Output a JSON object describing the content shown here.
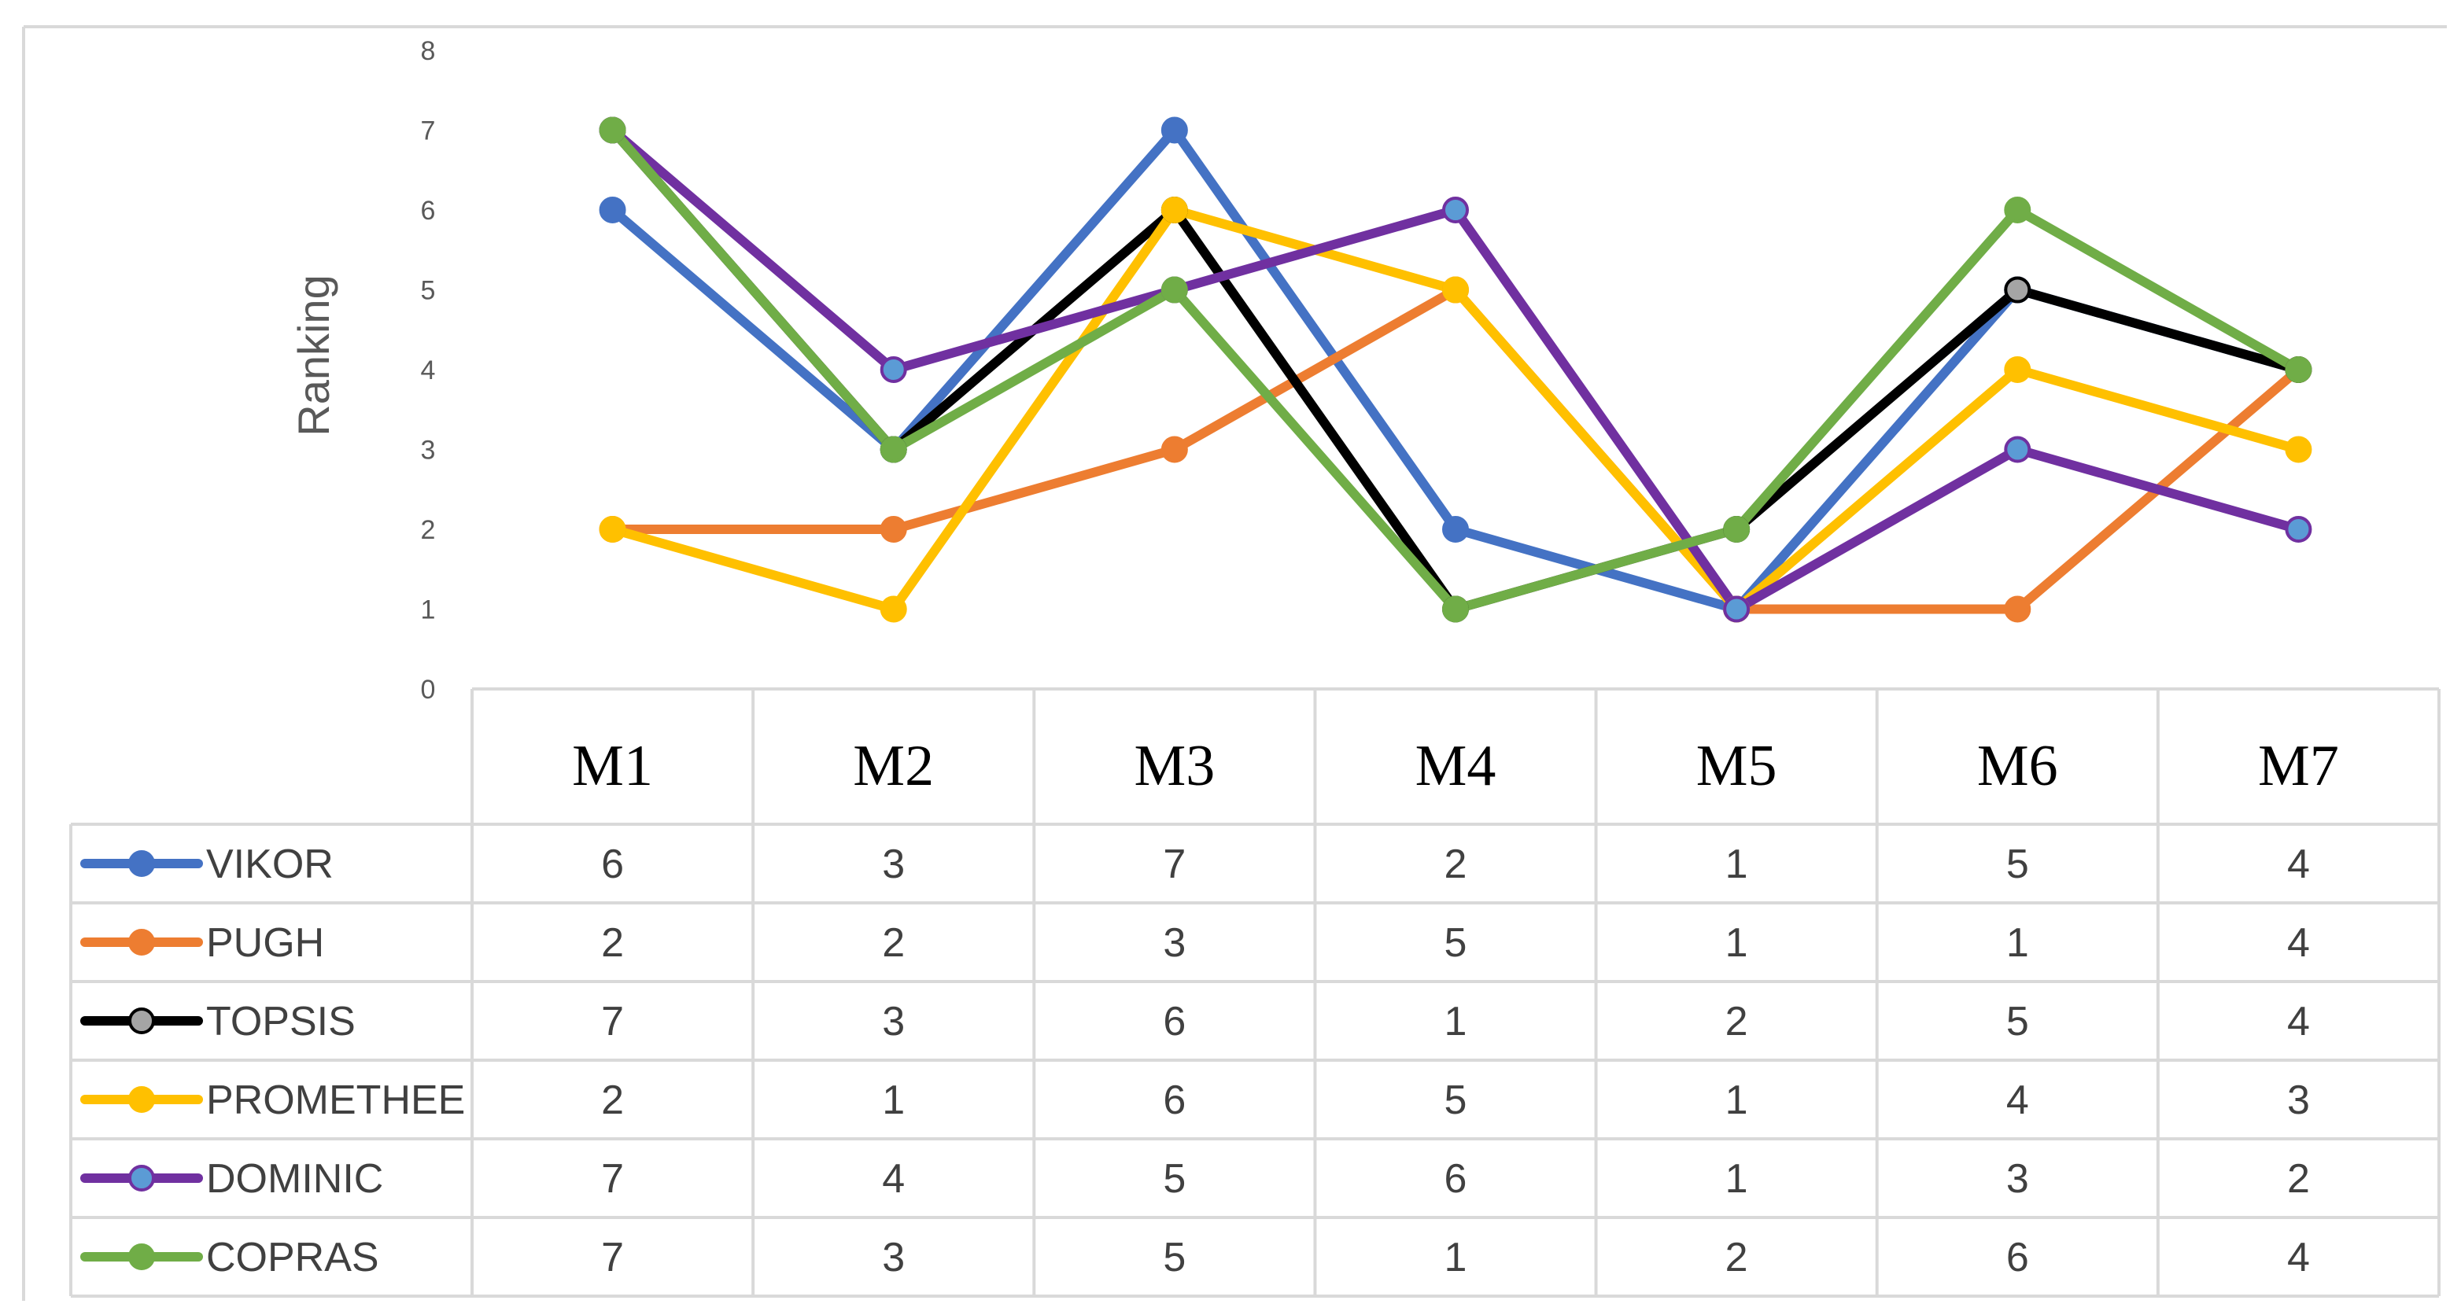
{
  "chart_data": {
    "type": "line",
    "title": "",
    "xlabel": "",
    "ylabel": "Ranking",
    "ylim": [
      0,
      8
    ],
    "yticks": [
      0,
      1,
      2,
      3,
      4,
      5,
      6,
      7,
      8
    ],
    "categories": [
      "M1",
      "M2",
      "M3",
      "M4",
      "M5",
      "M6",
      "M7"
    ],
    "grid": false,
    "legend": "data-table-left",
    "series": [
      {
        "name": "VIKOR",
        "values": [
          6,
          3,
          7,
          2,
          1,
          5,
          4
        ],
        "color": "#4472c4",
        "marker_fill": "#4472c4"
      },
      {
        "name": "PUGH",
        "values": [
          2,
          2,
          3,
          5,
          1,
          1,
          4
        ],
        "color": "#ed7d31",
        "marker_fill": "#ed7d31"
      },
      {
        "name": "TOPSIS",
        "values": [
          7,
          3,
          6,
          1,
          2,
          5,
          4
        ],
        "color": "#000000",
        "marker_fill": "#a5a5a5"
      },
      {
        "name": "PROMETHEE",
        "values": [
          2,
          1,
          6,
          5,
          1,
          4,
          3
        ],
        "color": "#ffc000",
        "marker_fill": "#ffc000"
      },
      {
        "name": "DOMINIC",
        "values": [
          7,
          4,
          5,
          6,
          1,
          3,
          2
        ],
        "color": "#7030a0",
        "marker_fill": "#5b9bd5"
      },
      {
        "name": "COPRAS",
        "values": [
          7,
          3,
          5,
          1,
          2,
          6,
          4
        ],
        "color": "#70ad47",
        "marker_fill": "#70ad47"
      }
    ]
  }
}
